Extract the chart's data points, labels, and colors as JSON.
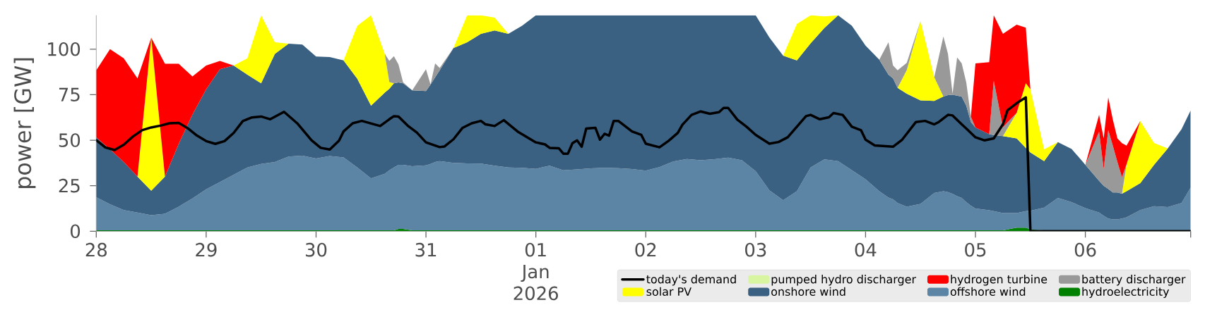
{
  "chart_data": {
    "type": "area",
    "stacked": true,
    "ylabel": "power [GW]",
    "xlim": [
      "2025-12-28T00:00",
      "2026-01-06T23:00"
    ],
    "ylim": [
      0,
      118.6
    ],
    "xticks": [
      {
        "value": "2025-12-28T00:00",
        "label": "28"
      },
      {
        "value": "2025-12-29T00:00",
        "label": "29"
      },
      {
        "value": "2025-12-30T00:00",
        "label": "30"
      },
      {
        "value": "2025-12-31T00:00",
        "label": "31"
      },
      {
        "value": "2026-01-01T00:00",
        "label": "01 Jan 2026"
      },
      {
        "value": "2026-01-02T00:00",
        "label": "02"
      },
      {
        "value": "2026-01-03T00:00",
        "label": "03"
      },
      {
        "value": "2026-01-04T00:00",
        "label": "04"
      },
      {
        "value": "2026-01-05T00:00",
        "label": "05"
      },
      {
        "value": "2026-01-06T00:00",
        "label": "06"
      },
      {
        "value": "2026-01-06T23:00",
        "label": null
      }
    ],
    "yticks": [
      0,
      25,
      50,
      75,
      100
    ],
    "legend": "bottom right",
    "x": [
      "2025-12-28T00:00",
      "2025-12-28T03:00",
      "2025-12-28T06:00",
      "2025-12-28T09:00",
      "2025-12-28T12:00",
      "2025-12-28T15:00",
      "2025-12-28T18:00",
      "2025-12-28T21:00",
      "2025-12-29T00:00",
      "2025-12-29T03:00",
      "2025-12-29T06:00",
      "2025-12-29T09:00",
      "2025-12-29T12:00",
      "2025-12-29T15:00",
      "2025-12-29T18:00",
      "2025-12-29T21:00",
      "2025-12-30T00:00",
      "2025-12-30T03:00",
      "2025-12-30T06:00",
      "2025-12-30T09:00",
      "2025-12-30T12:00",
      "2025-12-30T15:00",
      "2025-12-30T16:00",
      "2025-12-30T17:00",
      "2025-12-30T18:00",
      "2025-12-30T19:00",
      "2025-12-30T21:00",
      "2025-12-31T00:00",
      "2025-12-31T01:00",
      "2025-12-31T02:00",
      "2025-12-31T03:00",
      "2025-12-31T06:00",
      "2025-12-31T09:00",
      "2025-12-31T12:00",
      "2025-12-31T15:00",
      "2025-12-31T18:00",
      "2025-12-31T21:00",
      "2026-01-01T00:00",
      "2026-01-01T03:00",
      "2026-01-01T06:00",
      "2026-01-01T09:00",
      "2026-01-01T12:00",
      "2026-01-01T15:00",
      "2026-01-01T18:00",
      "2026-01-01T21:00",
      "2026-01-02T00:00",
      "2026-01-02T03:00",
      "2026-01-02T06:00",
      "2026-01-02T09:00",
      "2026-01-02T12:00",
      "2026-01-02T15:00",
      "2026-01-02T18:00",
      "2026-01-02T21:00",
      "2026-01-03T00:00",
      "2026-01-03T03:00",
      "2026-01-03T06:00",
      "2026-01-03T09:00",
      "2026-01-03T12:00",
      "2026-01-03T15:00",
      "2026-01-03T18:00",
      "2026-01-03T21:00",
      "2026-01-04T00:00",
      "2026-01-04T03:00",
      "2026-01-04T05:00",
      "2026-01-04T06:00",
      "2026-01-04T07:00",
      "2026-01-04T09:00",
      "2026-01-04T12:00",
      "2026-01-04T15:00",
      "2026-01-04T17:00",
      "2026-01-04T18:00",
      "2026-01-04T19:00",
      "2026-01-04T20:00",
      "2026-01-04T21:00",
      "2026-01-04T22:00",
      "2026-01-04T23:00",
      "2026-01-05T00:00",
      "2026-01-05T03:00",
      "2026-01-05T04:00",
      "2026-01-05T06:00",
      "2026-01-05T09:00",
      "2026-01-05T11:00",
      "2026-01-05T12:00",
      "2026-01-05T15:00",
      "2026-01-05T18:00",
      "2026-01-05T21:00",
      "2026-01-06T00:00",
      "2026-01-06T03:00",
      "2026-01-06T04:00",
      "2026-01-06T05:00",
      "2026-01-06T06:00",
      "2026-01-06T07:00",
      "2026-01-06T08:00",
      "2026-01-06T09:00",
      "2026-01-06T12:00",
      "2026-01-06T15:00",
      "2026-01-06T18:00",
      "2026-01-06T21:00",
      "2026-01-06T23:00"
    ],
    "series": [
      {
        "name": "hydroelectricity",
        "color": "#008000",
        "values": [
          0.5,
          0.5,
          0.5,
          0.5,
          0.5,
          0.5,
          0.5,
          0.5,
          0.5,
          0.5,
          0.5,
          0.5,
          0.5,
          0.5,
          0.5,
          0.5,
          0.5,
          0.5,
          0.5,
          0.5,
          0.5,
          0.5,
          0.5,
          0.5,
          1.3,
          1.3,
          0.5,
          0.5,
          0.5,
          0.5,
          0.5,
          0.5,
          0.5,
          0.5,
          0.5,
          0.5,
          0.5,
          0.5,
          0.5,
          0.5,
          0.5,
          0.5,
          0.5,
          0.5,
          0.5,
          0.5,
          0.5,
          0.5,
          0.5,
          0.5,
          0.5,
          0.5,
          0.5,
          0.5,
          0.5,
          0.5,
          0.5,
          0.5,
          0.5,
          0.5,
          0.5,
          0.5,
          0.5,
          0.5,
          0.5,
          0.5,
          0.5,
          0.5,
          0.5,
          0.5,
          0.5,
          0.5,
          0.5,
          0.5,
          0.5,
          0.5,
          0.5,
          0.5,
          0.5,
          0.5,
          2,
          2,
          1,
          0.5,
          0.5,
          0.5,
          0.5,
          0.5,
          0.5,
          0.5,
          0.5,
          0.5,
          0.5,
          0.5,
          0.5,
          0.5,
          0.5,
          0.5,
          0.5
        ]
      },
      {
        "name": "offshore wind",
        "color": "#5b84a5",
        "values": [
          18.2,
          14.3,
          11.1,
          9.8,
          8.3,
          9.1,
          13,
          17.5,
          22.5,
          26.5,
          30.5,
          34.5,
          36.5,
          37.5,
          40.5,
          41,
          39.5,
          40.8,
          40,
          34.5,
          28.5,
          31,
          33,
          34.5,
          35.2,
          35.2,
          35.2,
          35.7,
          36.5,
          37.5,
          38,
          37,
          36.8,
          36.7,
          35.5,
          34.5,
          34.3,
          33.8,
          35.5,
          33,
          33.5,
          34,
          34.3,
          34.1,
          33.7,
          32.8,
          34.7,
          37.8,
          39.2,
          38.5,
          39.1,
          39.9,
          38.5,
          32.5,
          22,
          16.5,
          21.5,
          34.5,
          39,
          38,
          33,
          28,
          21.5,
          18,
          17,
          15,
          13,
          14.5,
          20.5,
          21.5,
          21,
          20,
          18.8,
          17.8,
          15.5,
          13.5,
          12,
          11,
          10.5,
          9.5,
          8,
          9,
          10.2,
          12.5,
          17.8,
          15.5,
          12.2,
          9.8,
          8,
          6.5,
          6,
          6,
          6.5,
          7.2,
          11.1,
          13.3,
          12.8,
          15,
          23.5
        ]
      },
      {
        "name": "onshore wind",
        "color": "#3b6182",
        "values": [
          32.9,
          30.2,
          26.4,
          19.7,
          13.5,
          20.4,
          34.5,
          46,
          55,
          62,
          60,
          51,
          44.3,
          59.4,
          62,
          61,
          56,
          54.4,
          53.3,
          48.8,
          40,
          44.6,
          44.8,
          46.3,
          45.2,
          44.8,
          41.7,
          40.8,
          43.6,
          46.5,
          49.9,
          63.1,
          66.5,
          71.2,
          74.3,
          73.4,
          78.1,
          84.3,
          82.6,
          85.1,
          84.6,
          84.1,
          83.8,
          84,
          84.4,
          85.3,
          83.4,
          80.3,
          78.9,
          79.6,
          79,
          78.2,
          79.6,
          85.6,
          83.9,
          79.4,
          71.8,
          68.2,
          72.1,
          80.1,
          79.4,
          73.4,
          72.2,
          67.5,
          66.5,
          63.2,
          62,
          56.9,
          50.6,
          52,
          53.3,
          54.5,
          55.2,
          55.6,
          53,
          46,
          44.5,
          41.8,
          41.8,
          42.2,
          41,
          34.8,
          32,
          25.5,
          30.7,
          29.2,
          23.8,
          17.4,
          16.5,
          16.2,
          14.8,
          14.8,
          13.6,
          14.3,
          14.8,
          22.7,
          32.2,
          40.5,
          42.4
        ]
      },
      {
        "name": "solar PV",
        "color": "#ffff00",
        "values": [
          null,
          null,
          null,
          0,
          84,
          0,
          null,
          null,
          null,
          null,
          0,
          9,
          37.3,
          6.4,
          0,
          null,
          null,
          null,
          0,
          29,
          49.6,
          21.3,
          3.6,
          0,
          null,
          null,
          null,
          null,
          null,
          null,
          null,
          0,
          14.8,
          10.2,
          7,
          0,
          null,
          null,
          null,
          null,
          null,
          null,
          null,
          null,
          null,
          null,
          null,
          null,
          null,
          null,
          null,
          null,
          null,
          null,
          null,
          0,
          20,
          15.4,
          6.4,
          0,
          null,
          null,
          null,
          null,
          null,
          0,
          13,
          43.6,
          13,
          0,
          null,
          null,
          null,
          null,
          null,
          null,
          null,
          null,
          null,
          0,
          14,
          35.5,
          34.8,
          6.5,
          0,
          null,
          null,
          null,
          null,
          null,
          null,
          null,
          0,
          14.8,
          34.2,
          12,
          0,
          null,
          null
        ]
      },
      {
        "name": "battery discharger",
        "color": "#999999",
        "values": [
          null,
          null,
          null,
          null,
          null,
          null,
          null,
          null,
          null,
          null,
          null,
          null,
          null,
          null,
          null,
          null,
          null,
          null,
          null,
          null,
          null,
          0,
          11.6,
          14.8,
          9.9,
          0.5,
          0,
          12,
          0,
          7.7,
          1.3,
          0,
          null,
          null,
          null,
          null,
          null,
          null,
          null,
          null,
          null,
          null,
          null,
          null,
          null,
          null,
          null,
          null,
          null,
          null,
          null,
          null,
          null,
          null,
          null,
          null,
          null,
          null,
          null,
          null,
          null,
          null,
          0,
          17.8,
          7,
          9.7,
          4,
          0,
          0,
          33,
          22.6,
          0.5,
          21,
          18.3,
          12.6,
          3,
          0,
          0,
          29.8,
          5,
          0,
          null,
          null,
          null,
          null,
          null,
          0,
          27.1,
          9.2,
          32.3,
          25.7,
          16.7,
          9.1,
          0,
          null,
          null,
          null,
          null,
          null
        ]
      },
      {
        "name": "hydrogen turbine",
        "color": "#ff0000",
        "values": [
          36.8,
          55,
          57,
          54,
          0,
          62,
          44,
          21,
          13,
          4.5,
          0,
          null,
          null,
          null,
          null,
          null,
          null,
          null,
          null,
          null,
          null,
          null,
          null,
          null,
          null,
          null,
          null,
          null,
          null,
          null,
          null,
          null,
          null,
          null,
          null,
          null,
          null,
          null,
          null,
          null,
          null,
          null,
          null,
          null,
          null,
          null,
          null,
          null,
          null,
          null,
          null,
          null,
          null,
          null,
          null,
          null,
          null,
          null,
          null,
          null,
          null,
          null,
          null,
          null,
          null,
          null,
          null,
          null,
          null,
          null,
          null,
          null,
          null,
          null,
          null,
          0,
          35.2,
          39.6,
          36,
          51.2,
          48.5,
          30.5,
          0,
          null,
          null,
          null,
          0,
          9.1,
          16.8,
          18,
          14.3,
          13,
          18.7,
          10.2,
          0,
          null,
          null,
          null,
          null
        ]
      },
      {
        "name": "pumped hydro discharger",
        "color": "#d8f5a2",
        "values": [
          null,
          null,
          null,
          null,
          null,
          null,
          null,
          null,
          null,
          null,
          null,
          null,
          null,
          null,
          null,
          null,
          null,
          null,
          null,
          null,
          null,
          null,
          null,
          null,
          null,
          null,
          null,
          null,
          null,
          null,
          null,
          null,
          null,
          null,
          null,
          null,
          null,
          null,
          null,
          null,
          null,
          null,
          null,
          null,
          null,
          null,
          null,
          null,
          null,
          null,
          null,
          null,
          null,
          null,
          null,
          null,
          null,
          null,
          null,
          null,
          null,
          null,
          null,
          null,
          null,
          null,
          null,
          null,
          null,
          null,
          null,
          null,
          null,
          null,
          null,
          null,
          null,
          null,
          null,
          null,
          null,
          null,
          null,
          null,
          null,
          null,
          null,
          null,
          null,
          null,
          null,
          null,
          null,
          null,
          null,
          null,
          null,
          null,
          null
        ]
      },
      {
        "name": "today's demand",
        "type": "line",
        "color": "#000000",
        "x": [
          "2025-12-28T00:00",
          "2025-12-28T02:00",
          "2025-12-28T04:00",
          "2025-12-28T06:00",
          "2025-12-28T08:00",
          "2025-12-28T10:00",
          "2025-12-28T12:00",
          "2025-12-28T14:00",
          "2025-12-28T16:00",
          "2025-12-28T18:00",
          "2025-12-28T20:00",
          "2025-12-28T22:00",
          "2025-12-29T00:00",
          "2025-12-29T02:00",
          "2025-12-29T04:00",
          "2025-12-29T06:00",
          "2025-12-29T08:00",
          "2025-12-29T10:00",
          "2025-12-29T12:00",
          "2025-12-29T14:00",
          "2025-12-29T17:00",
          "2025-12-29T20:00",
          "2025-12-29T23:00",
          "2025-12-30T01:00",
          "2025-12-30T03:00",
          "2025-12-30T05:00",
          "2025-12-30T06:00",
          "2025-12-30T08:00",
          "2025-12-30T10:00",
          "2025-12-30T13:00",
          "2025-12-30T14:00",
          "2025-12-30T16:00",
          "2025-12-30T17:00",
          "2025-12-30T18:00",
          "2025-12-30T20:00",
          "2025-12-30T22:00",
          "2025-12-31T00:00",
          "2025-12-31T03:00",
          "2025-12-31T04:00",
          "2025-12-31T06:00",
          "2025-12-31T08:00",
          "2025-12-31T10:00",
          "2025-12-31T12:00",
          "2025-12-31T13:00",
          "2025-12-31T15:00",
          "2025-12-31T17:00",
          "2025-12-31T20:00",
          "2026-01-01T00:00",
          "2026-01-01T02:00",
          "2026-01-01T03:00",
          "2026-01-01T05:00",
          "2026-01-01T06:00",
          "2026-01-01T07:00",
          "2026-01-01T08:00",
          "2026-01-01T09:00",
          "2026-01-01T10:00",
          "2026-01-01T11:00",
          "2026-01-01T13:00",
          "2026-01-01T14:00",
          "2026-01-01T15:00",
          "2026-01-01T16:00",
          "2026-01-01T17:00",
          "2026-01-01T18:00",
          "2026-01-01T21:00",
          "2026-01-01T23:00",
          "2026-01-02T00:00",
          "2026-01-02T03:00",
          "2026-01-02T05:00",
          "2026-01-02T07:00",
          "2026-01-02T08:00",
          "2026-01-02T10:00",
          "2026-01-02T12:00",
          "2026-01-02T14:00",
          "2026-01-02T16:00",
          "2026-01-02T17:00",
          "2026-01-02T18:00",
          "2026-01-02T20:00",
          "2026-01-02T22:00",
          "2026-01-03T00:00",
          "2026-01-03T03:00",
          "2026-01-03T05:00",
          "2026-01-03T07:00",
          "2026-01-03T09:00",
          "2026-01-03T11:00",
          "2026-01-03T12:00",
          "2026-01-03T14:00",
          "2026-01-03T16:00",
          "2026-01-03T17:00",
          "2026-01-03T19:00",
          "2026-01-03T21:00",
          "2026-01-03T23:00",
          "2026-01-04T00:00",
          "2026-01-04T02:00",
          "2026-01-04T06:00",
          "2026-01-04T08:00",
          "2026-01-04T11:00",
          "2026-01-04T13:00",
          "2026-01-04T15:00",
          "2026-01-04T16:00",
          "2026-01-04T18:00",
          "2026-01-04T19:00",
          "2026-01-04T21:00",
          "2026-01-04T22:00",
          "2026-01-05T00:00",
          "2026-01-05T02:00",
          "2026-01-05T04:00",
          "2026-01-05T06:00",
          "2026-01-05T07:00",
          "2026-01-05T09:00",
          "2026-01-05T11:00",
          "2026-01-05T12:00",
          "2026-01-06T23:00"
        ],
        "values": [
          50,
          46,
          44.6,
          47.5,
          52,
          55.5,
          57,
          58,
          59.3,
          59.5,
          56.5,
          52.5,
          49.5,
          48,
          49.5,
          54,
          60.5,
          62.5,
          63,
          61.5,
          65.6,
          59,
          50,
          45.8,
          44.9,
          49.7,
          54.8,
          59.3,
          60.6,
          58.5,
          57.8,
          61.5,
          63.2,
          63,
          58,
          54.2,
          48.8,
          46.2,
          46.5,
          50.5,
          56.8,
          59.3,
          60.6,
          58.7,
          57.8,
          61,
          54.8,
          48.8,
          47.7,
          45.8,
          45.6,
          42.6,
          42.6,
          48.4,
          49.9,
          46.4,
          56.4,
          56.8,
          50.3,
          53.5,
          52.5,
          60.6,
          60.6,
          54.8,
          53,
          48.1,
          46.1,
          49.7,
          54,
          58.5,
          63.9,
          65.8,
          64.5,
          65.4,
          67.7,
          67.7,
          61.3,
          57.4,
          52.9,
          48.1,
          49,
          51.6,
          57.4,
          63.2,
          63.9,
          61.5,
          62.6,
          64.9,
          63.9,
          57.4,
          55.5,
          50.3,
          47.1,
          46.4,
          50.3,
          60,
          60.6,
          58.7,
          60,
          63.9,
          63.6,
          58.7,
          56.4,
          51.6,
          49.9,
          51,
          58.7,
          66.4,
          70.3,
          73.5,
          0,
          0
        ]
      }
    ]
  }
}
